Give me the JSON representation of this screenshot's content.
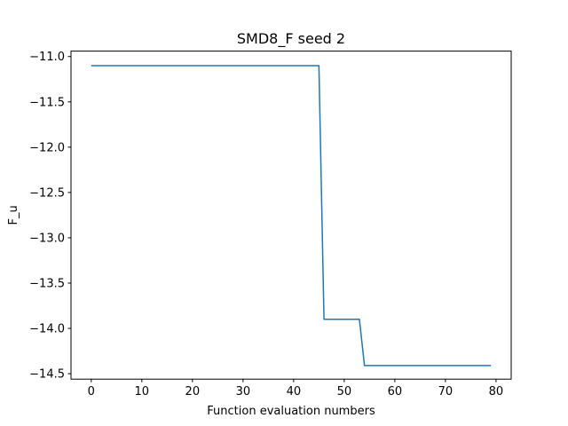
{
  "chart_data": {
    "type": "line",
    "title": "SMD8_F seed 2",
    "xlabel": "Function evaluation numbers",
    "ylabel": "F_u",
    "xlim": [
      -4,
      83
    ],
    "ylim": [
      -14.56,
      -10.94
    ],
    "grid": false,
    "x_ticks": [
      0,
      10,
      20,
      30,
      40,
      50,
      60,
      70,
      80
    ],
    "y_ticks": [
      -11.0,
      -11.5,
      -12.0,
      -12.5,
      -13.0,
      -13.5,
      -14.0,
      -14.5
    ],
    "x_tick_labels": [
      "0",
      "10",
      "20",
      "30",
      "40",
      "50",
      "60",
      "70",
      "80"
    ],
    "y_tick_labels": [
      "−11.0",
      "−11.5",
      "−12.0",
      "−12.5",
      "−13.0",
      "−13.5",
      "−14.0",
      "−14.5"
    ],
    "series": [
      {
        "color": "#1f77b4",
        "x": [
          0,
          45,
          46,
          53,
          54,
          79
        ],
        "y": [
          -11.1,
          -11.1,
          -13.9,
          -13.9,
          -14.41,
          -14.41
        ]
      }
    ]
  }
}
